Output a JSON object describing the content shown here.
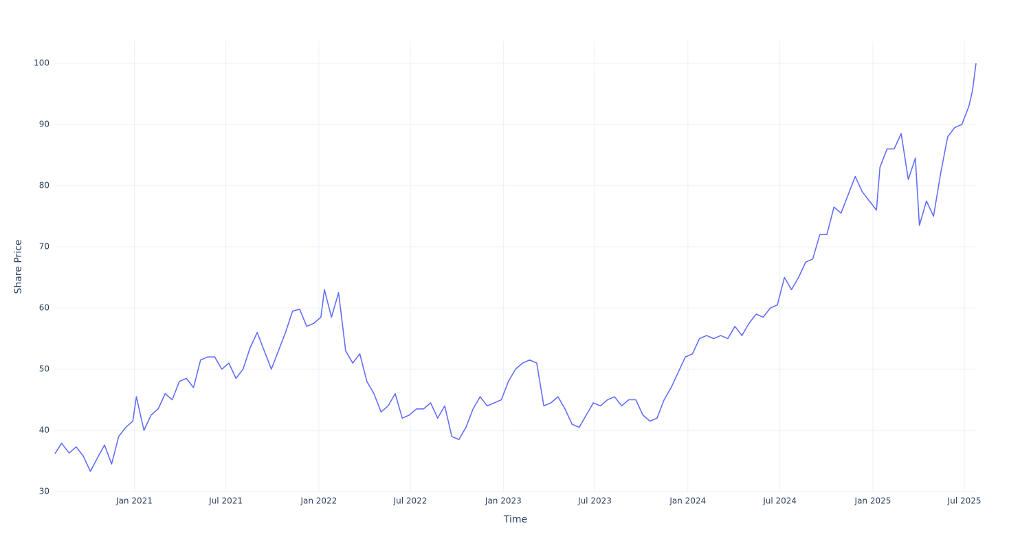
{
  "chart_data": {
    "type": "line",
    "x_label": "Time",
    "y_label": "Share Price",
    "series": [
      {
        "name": "Share Price",
        "color": "#636efa",
        "x": [
          "2020-07-28",
          "2020-08-10",
          "2020-08-25",
          "2020-09-08",
          "2020-09-22",
          "2020-10-06",
          "2020-10-20",
          "2020-11-03",
          "2020-11-17",
          "2020-12-01",
          "2020-12-15",
          "2020-12-29",
          "2021-01-05",
          "2021-01-20",
          "2021-02-03",
          "2021-02-17",
          "2021-03-03",
          "2021-03-17",
          "2021-03-31",
          "2021-04-14",
          "2021-04-28",
          "2021-05-12",
          "2021-05-26",
          "2021-06-09",
          "2021-06-23",
          "2021-07-07",
          "2021-07-21",
          "2021-08-04",
          "2021-08-18",
          "2021-09-01",
          "2021-09-15",
          "2021-09-29",
          "2021-10-13",
          "2021-10-27",
          "2021-11-10",
          "2021-11-24",
          "2021-12-08",
          "2021-12-22",
          "2022-01-05",
          "2022-01-12",
          "2022-01-26",
          "2022-02-09",
          "2022-02-23",
          "2022-03-09",
          "2022-03-23",
          "2022-04-06",
          "2022-04-20",
          "2022-05-04",
          "2022-05-18",
          "2022-06-01",
          "2022-06-15",
          "2022-06-29",
          "2022-07-13",
          "2022-07-27",
          "2022-08-10",
          "2022-08-24",
          "2022-09-07",
          "2022-09-21",
          "2022-10-05",
          "2022-10-19",
          "2022-11-02",
          "2022-11-16",
          "2022-11-30",
          "2022-12-14",
          "2022-12-28",
          "2023-01-11",
          "2023-01-25",
          "2023-02-08",
          "2023-02-22",
          "2023-03-08",
          "2023-03-22",
          "2023-04-05",
          "2023-04-19",
          "2023-05-03",
          "2023-05-17",
          "2023-05-31",
          "2023-06-14",
          "2023-06-28",
          "2023-07-12",
          "2023-07-26",
          "2023-08-09",
          "2023-08-23",
          "2023-09-06",
          "2023-09-20",
          "2023-10-04",
          "2023-10-18",
          "2023-11-01",
          "2023-11-15",
          "2023-11-29",
          "2023-12-13",
          "2023-12-27",
          "2024-01-10",
          "2024-01-24",
          "2024-02-07",
          "2024-02-21",
          "2024-03-06",
          "2024-03-20",
          "2024-04-03",
          "2024-04-17",
          "2024-05-01",
          "2024-05-15",
          "2024-05-29",
          "2024-06-12",
          "2024-06-26",
          "2024-07-10",
          "2024-07-24",
          "2024-08-07",
          "2024-08-21",
          "2024-09-04",
          "2024-09-18",
          "2024-10-02",
          "2024-10-16",
          "2024-10-30",
          "2024-11-13",
          "2024-11-27",
          "2024-12-11",
          "2024-12-25",
          "2025-01-08",
          "2025-01-15",
          "2025-01-29",
          "2025-02-12",
          "2025-02-26",
          "2025-03-12",
          "2025-03-26",
          "2025-04-03",
          "2025-04-17",
          "2025-05-01",
          "2025-05-15",
          "2025-05-29",
          "2025-06-12",
          "2025-06-26",
          "2025-07-10",
          "2025-07-17",
          "2025-07-24"
        ],
        "values": [
          36.2,
          37.9,
          36.3,
          37.3,
          35.8,
          33.3,
          35.5,
          37.6,
          34.5,
          39.0,
          40.5,
          41.5,
          45.5,
          40.0,
          42.5,
          43.5,
          46.0,
          45.0,
          48.0,
          48.5,
          47.0,
          51.5,
          52.0,
          52.0,
          50.0,
          51.0,
          48.5,
          50.0,
          53.5,
          56.0,
          53.0,
          50.0,
          53.0,
          56.0,
          59.5,
          59.8,
          57.0,
          57.5,
          58.5,
          63.0,
          58.5,
          62.5,
          53.0,
          51.0,
          52.5,
          48.0,
          46.0,
          43.0,
          44.0,
          46.0,
          42.0,
          42.5,
          43.5,
          43.5,
          44.5,
          42.0,
          44.0,
          39.0,
          38.5,
          40.5,
          43.5,
          45.5,
          44.0,
          44.5,
          45.0,
          48.0,
          50.0,
          51.0,
          51.5,
          51.0,
          44.0,
          44.5,
          45.5,
          43.5,
          41.0,
          40.5,
          42.5,
          44.5,
          44.0,
          45.0,
          45.5,
          44.0,
          45.0,
          45.0,
          42.5,
          41.5,
          42.0,
          45.0,
          47.0,
          49.5,
          52.0,
          52.5,
          55.0,
          55.5,
          55.0,
          55.5,
          55.0,
          57.0,
          55.5,
          57.5,
          59.0,
          58.5,
          60.0,
          60.5,
          65.0,
          63.0,
          65.0,
          67.5,
          68.0,
          72.0,
          72.0,
          76.5,
          75.5,
          78.5,
          81.5,
          79.0,
          77.5,
          76.0,
          83.0,
          86.0,
          86.0,
          88.5,
          81.0,
          84.5,
          73.5,
          77.5,
          75.0,
          82.0,
          88.0,
          89.5,
          90.0,
          93.0,
          95.5,
          100.0
        ]
      }
    ],
    "xlim": [
      "2020-07-28",
      "2025-07-24"
    ],
    "xticks": [
      {
        "value": "2021-01-01",
        "label": "Jan 2021"
      },
      {
        "value": "2021-07-01",
        "label": "Jul 2021"
      },
      {
        "value": "2022-01-01",
        "label": "Jan 2022"
      },
      {
        "value": "2022-07-01",
        "label": "Jul 2022"
      },
      {
        "value": "2023-01-01",
        "label": "Jan 2023"
      },
      {
        "value": "2023-07-01",
        "label": "Jul 2023"
      },
      {
        "value": "2024-01-01",
        "label": "Jan 2024"
      },
      {
        "value": "2024-07-01",
        "label": "Jul 2024"
      },
      {
        "value": "2025-01-01",
        "label": "Jan 2025"
      },
      {
        "value": "2025-07-01",
        "label": "Jul 2025"
      }
    ],
    "ylim": [
      30,
      103.6
    ],
    "yticks": [
      30,
      40,
      50,
      60,
      70,
      80,
      90,
      100
    ],
    "grid": true
  }
}
